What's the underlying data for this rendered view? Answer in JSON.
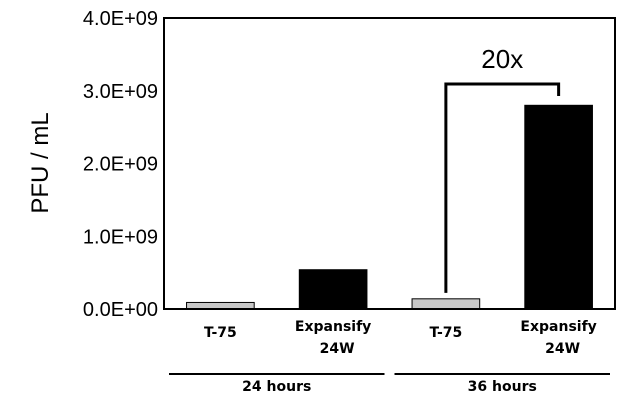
{
  "chart_data": {
    "type": "bar",
    "ylabel": "PFU / mL",
    "ylim": [
      0,
      4000000000
    ],
    "yticks": [
      "0.0E+00",
      "1.0E+09",
      "2.0E+09",
      "3.0E+09",
      "4.0E+09"
    ],
    "groups": [
      {
        "label": "24 hours",
        "bars": [
          {
            "label": [
              "T-75"
            ],
            "value": 90000000,
            "color": "#c8c8c8"
          },
          {
            "label": [
              "Expansify",
              "24W"
            ],
            "value": 540000000,
            "color": "#000000"
          }
        ]
      },
      {
        "label": "36 hours",
        "bars": [
          {
            "label": [
              "T-75"
            ],
            "value": 140000000,
            "color": "#c8c8c8"
          },
          {
            "label": [
              "Expansify",
              "24W"
            ],
            "value": 2800000000,
            "color": "#000000"
          }
        ]
      }
    ],
    "annotation": {
      "text": "20x",
      "from": [
        1,
        0
      ],
      "to": [
        1,
        1
      ]
    },
    "grid": false,
    "legend": "none"
  }
}
